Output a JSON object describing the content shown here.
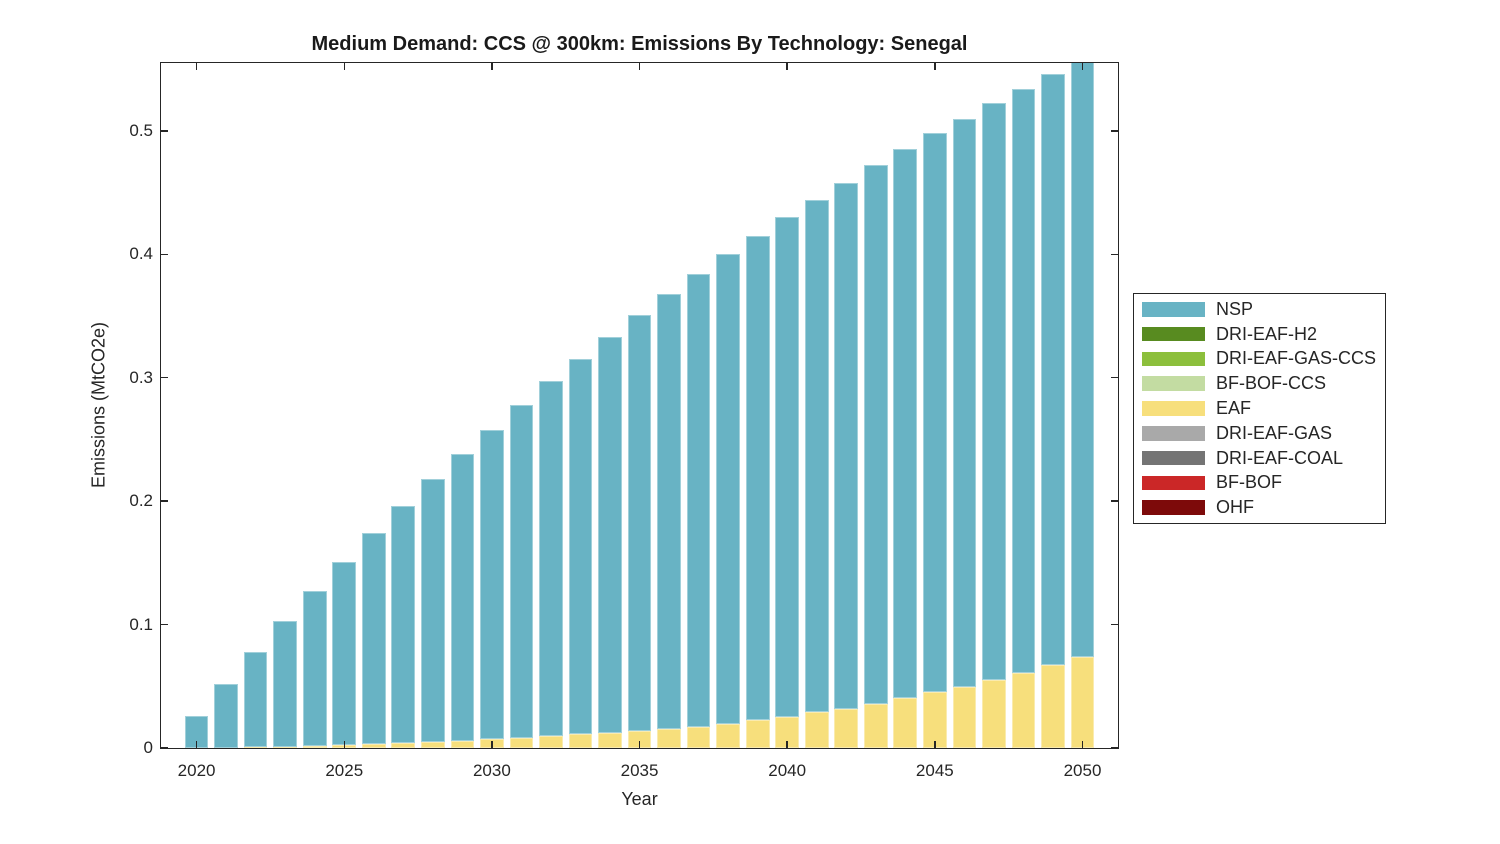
{
  "chart_data": {
    "type": "bar",
    "stacked": true,
    "title": "Medium Demand: CCS @ 300km: Emissions By Technology: Senegal",
    "xlabel": "Year",
    "ylabel": "Emissions (MtCO2e)",
    "ylim": [
      0,
      0.555
    ],
    "grid": false,
    "legend_position": "right-outside",
    "stack_order": "bottom-to-top is reverse of series order (EAF below NSP)",
    "xticks": [
      2020,
      2025,
      2030,
      2035,
      2040,
      2045,
      2050
    ],
    "ytick_labels": [
      "0",
      "0.1",
      "0.2",
      "0.3",
      "0.4",
      "0.5"
    ],
    "yticks": [
      0,
      0.1,
      0.2,
      0.3,
      0.4,
      0.5
    ],
    "categories": [
      2020,
      2021,
      2022,
      2023,
      2024,
      2025,
      2026,
      2027,
      2028,
      2029,
      2030,
      2031,
      2032,
      2033,
      2034,
      2035,
      2036,
      2037,
      2038,
      2039,
      2040,
      2041,
      2042,
      2043,
      2044,
      2045,
      2046,
      2047,
      2048,
      2049,
      2050
    ],
    "series": [
      {
        "name": "NSP",
        "color": "#68B3C4",
        "values": [
          0.026,
          0.0516,
          0.0775,
          0.1021,
          0.1261,
          0.1488,
          0.171,
          0.1921,
          0.2131,
          0.2321,
          0.2511,
          0.2698,
          0.2874,
          0.3037,
          0.3205,
          0.3372,
          0.3525,
          0.3666,
          0.3804,
          0.3927,
          0.4046,
          0.4152,
          0.4263,
          0.4362,
          0.4448,
          0.4528,
          0.4607,
          0.4682,
          0.4732,
          0.479,
          0.4825
        ]
      },
      {
        "name": "DRI-EAF-H2",
        "color": "#588B20",
        "values": [
          0,
          0,
          0,
          0,
          0,
          0,
          0,
          0,
          0,
          0,
          0,
          0,
          0,
          0,
          0,
          0,
          0,
          0,
          0,
          0,
          0,
          0,
          0,
          0,
          0,
          0,
          0,
          0,
          0,
          0,
          0
        ]
      },
      {
        "name": "DRI-EAF-GAS-CCS",
        "color": "#8CBF3C",
        "values": [
          0,
          0,
          0,
          0,
          0,
          0,
          0,
          0,
          0,
          0,
          0,
          0,
          0,
          0,
          0,
          0,
          0,
          0,
          0,
          0,
          0,
          0,
          0,
          0,
          0,
          0,
          0,
          0,
          0,
          0,
          0
        ]
      },
      {
        "name": "BF-BOF-CCS",
        "color": "#C3DCA2",
        "values": [
          0,
          0,
          0,
          0,
          0,
          0,
          0,
          0,
          0,
          0,
          0,
          0,
          0,
          0,
          0,
          0,
          0,
          0,
          0,
          0,
          0,
          0,
          0,
          0,
          0,
          0,
          0,
          0,
          0,
          0,
          0
        ]
      },
      {
        "name": "EAF",
        "color": "#F7DF7C",
        "values": [
          0,
          0.0002,
          0.0005,
          0.0009,
          0.0015,
          0.0022,
          0.003,
          0.0039,
          0.0049,
          0.0059,
          0.0069,
          0.0082,
          0.0096,
          0.0113,
          0.0125,
          0.0138,
          0.0155,
          0.0174,
          0.0196,
          0.0223,
          0.0254,
          0.0288,
          0.0317,
          0.0358,
          0.0402,
          0.0452,
          0.0493,
          0.0548,
          0.0608,
          0.067,
          0.0735
        ]
      },
      {
        "name": "DRI-EAF-GAS",
        "color": "#A9A9A9",
        "values": [
          0,
          0,
          0,
          0,
          0,
          0,
          0,
          0,
          0,
          0,
          0,
          0,
          0,
          0,
          0,
          0,
          0,
          0,
          0,
          0,
          0,
          0,
          0,
          0,
          0,
          0,
          0,
          0,
          0,
          0,
          0
        ]
      },
      {
        "name": "DRI-EAF-COAL",
        "color": "#747474",
        "values": [
          0,
          0,
          0,
          0,
          0,
          0,
          0,
          0,
          0,
          0,
          0,
          0,
          0,
          0,
          0,
          0,
          0,
          0,
          0,
          0,
          0,
          0,
          0,
          0,
          0,
          0,
          0,
          0,
          0,
          0,
          0
        ]
      },
      {
        "name": "BF-BOF",
        "color": "#CB2727",
        "values": [
          0,
          0,
          0,
          0,
          0,
          0,
          0,
          0,
          0,
          0,
          0,
          0,
          0,
          0,
          0,
          0,
          0,
          0,
          0,
          0,
          0,
          0,
          0,
          0,
          0,
          0,
          0,
          0,
          0,
          0,
          0
        ]
      },
      {
        "name": "OHF",
        "color": "#7D0A0A",
        "values": [
          0,
          0,
          0,
          0,
          0,
          0,
          0,
          0,
          0,
          0,
          0,
          0,
          0,
          0,
          0,
          0,
          0,
          0,
          0,
          0,
          0,
          0,
          0,
          0,
          0,
          0,
          0,
          0,
          0,
          0,
          0
        ]
      }
    ]
  },
  "axis": {
    "line_color": "#262626",
    "text_color": "#262626"
  }
}
